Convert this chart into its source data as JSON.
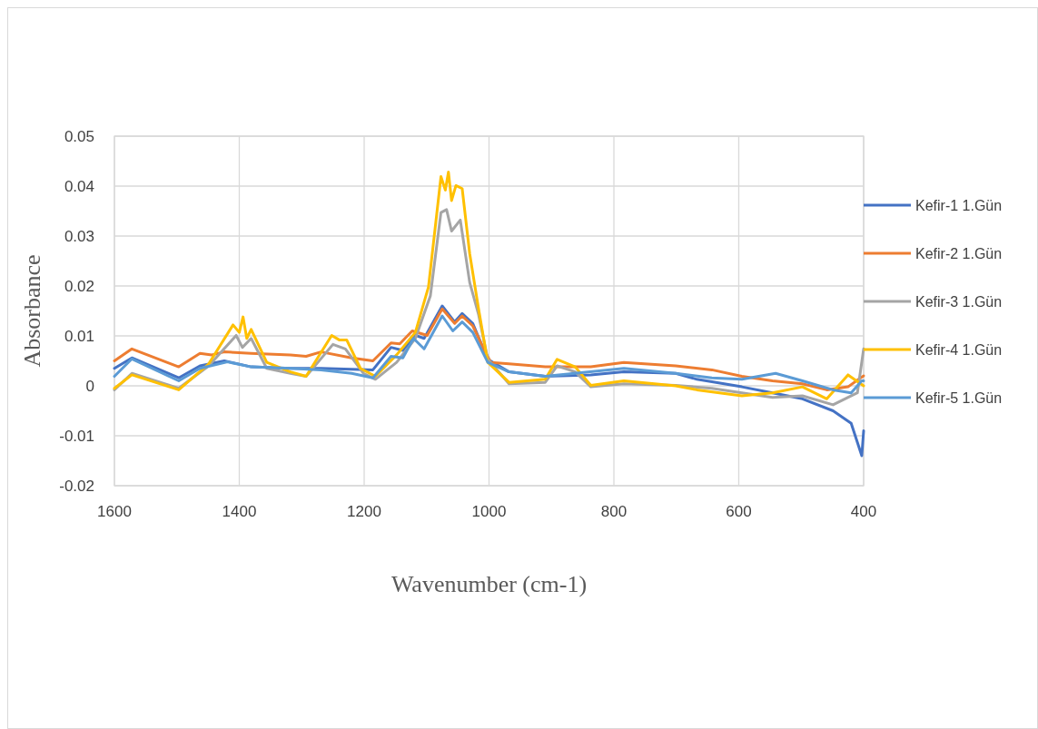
{
  "chart_data": {
    "type": "line",
    "xlabel": "Wavenumber (cm-1)",
    "ylabel": "Absorbance",
    "xlim": [
      1600,
      400
    ],
    "ylim": [
      -0.02,
      0.05
    ],
    "xticks": [
      1600,
      1400,
      1200,
      1000,
      800,
      600,
      400
    ],
    "yticks": [
      -0.02,
      -0.01,
      0,
      0.01,
      0.02,
      0.03,
      0.04,
      0.05
    ],
    "grid": true,
    "legend": "right",
    "line_style": "solid",
    "series": [
      {
        "name": "Kefir-1 1.Gün",
        "color": "#4472c4",
        "x": [
          1600,
          1572,
          1497,
          1463,
          1424,
          1381,
          1318,
          1269,
          1220,
          1186,
          1157,
          1138,
          1118,
          1104,
          1075,
          1055,
          1043,
          1026,
          1002,
          968,
          910,
          837,
          784,
          701,
          667,
          595,
          546,
          498,
          449,
          420,
          403,
          400
        ],
        "values": [
          0.0035,
          0.0056,
          0.0016,
          0.004,
          0.005,
          0.0038,
          0.0035,
          0.0035,
          0.0033,
          0.0032,
          0.0077,
          0.0071,
          0.0101,
          0.0095,
          0.016,
          0.0128,
          0.0145,
          0.0125,
          0.0053,
          0.0028,
          0.0019,
          0.0022,
          0.0028,
          0.0025,
          0.0013,
          -0.0002,
          -0.0014,
          -0.0026,
          -0.005,
          -0.0075,
          -0.014,
          -0.009
        ]
      },
      {
        "name": "Kefir-2 1.Gün",
        "color": "#ed7d31",
        "x": [
          1600,
          1572,
          1497,
          1463,
          1444,
          1424,
          1381,
          1318,
          1293,
          1269,
          1220,
          1186,
          1157,
          1143,
          1123,
          1099,
          1075,
          1055,
          1043,
          1026,
          1007,
          997,
          968,
          910,
          837,
          784,
          701,
          643,
          595,
          546,
          498,
          459,
          425,
          405,
          400
        ],
        "values": [
          0.005,
          0.0074,
          0.0038,
          0.0065,
          0.0062,
          0.0068,
          0.0065,
          0.0062,
          0.0059,
          0.0068,
          0.0056,
          0.005,
          0.0086,
          0.0084,
          0.011,
          0.0101,
          0.0154,
          0.0125,
          0.014,
          0.012,
          0.007,
          0.0047,
          0.0044,
          0.0038,
          0.0038,
          0.0047,
          0.004,
          0.0032,
          0.0019,
          0.001,
          0.0004,
          -0.0008,
          -0.0002,
          0.0016,
          0.002
        ]
      },
      {
        "name": "Kefir-3 1.Gün",
        "color": "#a5a5a5",
        "x": [
          1600,
          1572,
          1497,
          1449,
          1405,
          1395,
          1381,
          1356,
          1318,
          1293,
          1250,
          1230,
          1201,
          1182,
          1148,
          1118,
          1094,
          1077,
          1068,
          1060,
          1046,
          1031,
          1017,
          1002,
          968,
          910,
          891,
          862,
          837,
          784,
          701,
          643,
          595,
          546,
          498,
          449,
          410,
          400
        ],
        "values": [
          -0.0008,
          0.0025,
          -0.0005,
          0.004,
          0.0101,
          0.0077,
          0.0095,
          0.0035,
          0.0025,
          0.0019,
          0.0083,
          0.0074,
          0.0025,
          0.0013,
          0.0047,
          0.0095,
          0.018,
          0.0347,
          0.0353,
          0.031,
          0.0332,
          0.0207,
          0.0144,
          0.0053,
          0.0004,
          0.0007,
          0.004,
          0.0028,
          -0.0002,
          0.0004,
          0.0001,
          -0.0005,
          -0.0014,
          -0.0023,
          -0.002,
          -0.0038,
          -0.0014,
          0.0074
        ]
      },
      {
        "name": "Kefir-4 1.Gün",
        "color": "#ffc000",
        "x": [
          1600,
          1572,
          1497,
          1449,
          1410,
          1400,
          1394,
          1388,
          1381,
          1356,
          1318,
          1293,
          1252,
          1240,
          1228,
          1206,
          1182,
          1148,
          1118,
          1097,
          1077,
          1070,
          1065,
          1060,
          1053,
          1043,
          1031,
          1017,
          1002,
          968,
          910,
          891,
          862,
          837,
          784,
          701,
          667,
          595,
          546,
          498,
          459,
          425,
          400
        ],
        "values": [
          -0.0005,
          0.0022,
          -0.0008,
          0.0044,
          0.0122,
          0.0107,
          0.0138,
          0.0095,
          0.0113,
          0.0047,
          0.0028,
          0.0019,
          0.0101,
          0.0092,
          0.0092,
          0.0035,
          0.0019,
          0.0062,
          0.0107,
          0.0198,
          0.0419,
          0.0392,
          0.0428,
          0.0371,
          0.0401,
          0.0395,
          0.0265,
          0.0156,
          0.0047,
          0.0007,
          0.0013,
          0.0053,
          0.0038,
          0.0001,
          0.001,
          0,
          -0.0008,
          -0.002,
          -0.0014,
          -0.0002,
          -0.0026,
          0.0022,
          0
        ]
      },
      {
        "name": "Kefir-5 1.Gün",
        "color": "#5b9bd5",
        "x": [
          1600,
          1572,
          1497,
          1463,
          1419,
          1381,
          1318,
          1269,
          1220,
          1186,
          1157,
          1138,
          1121,
          1104,
          1075,
          1058,
          1043,
          1026,
          1002,
          968,
          910,
          784,
          701,
          643,
          595,
          541,
          498,
          449,
          420,
          403,
          400
        ],
        "values": [
          0.0019,
          0.0054,
          0.001,
          0.0035,
          0.0048,
          0.0038,
          0.0035,
          0.0032,
          0.0025,
          0.0016,
          0.0059,
          0.0056,
          0.0095,
          0.0074,
          0.014,
          0.011,
          0.0128,
          0.0107,
          0.0047,
          0.0028,
          0.0019,
          0.0035,
          0.0025,
          0.0016,
          0.0013,
          0.0025,
          0.001,
          -0.0008,
          -0.0014,
          0.001,
          0.001
        ]
      }
    ]
  }
}
